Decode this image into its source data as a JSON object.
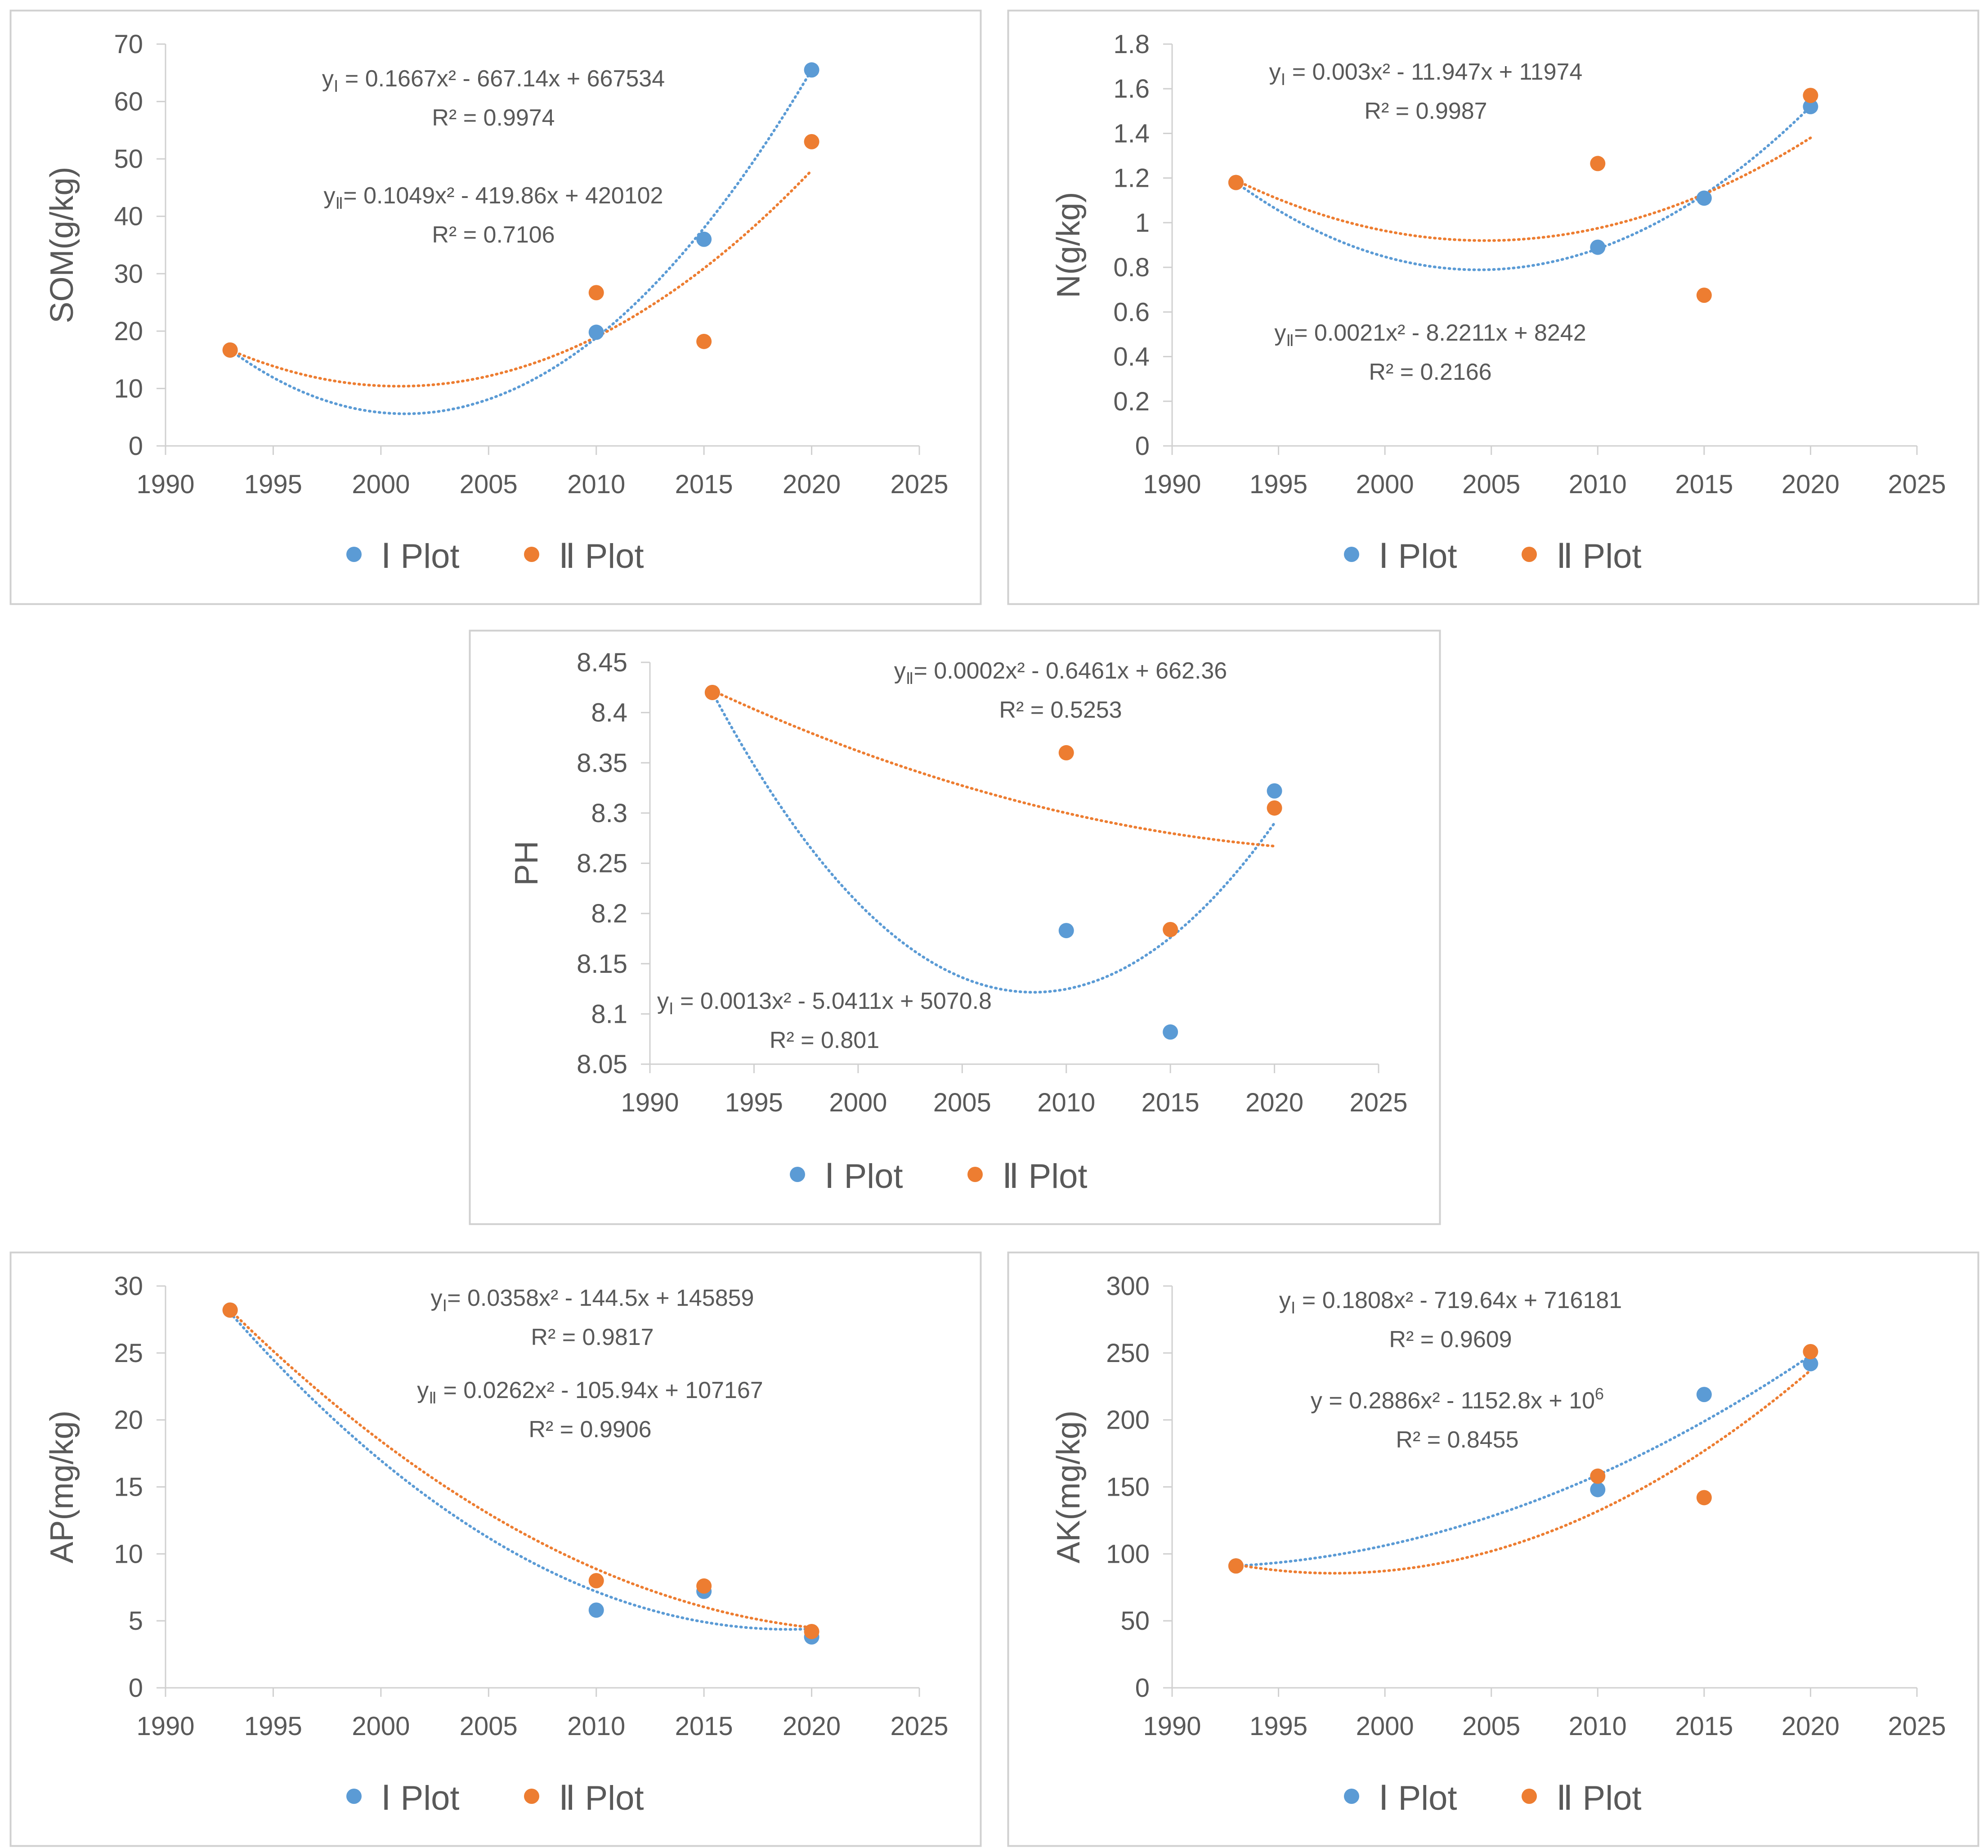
{
  "colors": {
    "series1": "#5B9BD5",
    "series2": "#ED7D31",
    "axis": "#D0D0D0",
    "text": "#595959",
    "border": "#D0D0D0"
  },
  "chart_data": [
    {
      "type": "scatter",
      "ylabel": "SOM(g/kg)",
      "xlabel": "",
      "xlim": [
        1990,
        2025
      ],
      "ylim": [
        0,
        70
      ],
      "x_ticks": [
        "1990",
        "1995",
        "2000",
        "2005",
        "2010",
        "2015",
        "2020",
        "2025"
      ],
      "y_ticks": [
        "0",
        "10",
        "20",
        "30",
        "40",
        "50",
        "60",
        "70"
      ],
      "legend": [
        "Ⅰ  Plot",
        "Ⅱ Plot"
      ],
      "legend_position": "bottom",
      "series": [
        {
          "name": "Ⅰ  Plot",
          "x": [
            1993,
            2010,
            2015,
            2020
          ],
          "y": [
            16.7,
            19.8,
            36.0,
            65.5
          ]
        },
        {
          "name": "Ⅱ Plot",
          "x": [
            1993,
            2010,
            2015,
            2020
          ],
          "y": [
            16.7,
            26.7,
            18.2,
            53.0
          ]
        }
      ],
      "trendlines": [
        {
          "type": "poly2",
          "through": [
            [
              1993,
              16.7
            ],
            [
              2001,
              5.6
            ],
            [
              2020,
              65.5
            ]
          ]
        },
        {
          "type": "poly2",
          "through": [
            [
              1993,
              16.7
            ],
            [
              2001,
              10.4
            ],
            [
              2020,
              48.0
            ]
          ]
        }
      ],
      "annotations": [
        {
          "lines": [
            {
              "text": "y",
              "sub": "Ⅰ",
              "rest": " = 0.1667x² - 667.14x + 667534"
            },
            {
              "text": "R² = 0.9974"
            }
          ]
        },
        {
          "lines": [
            {
              "text": "y",
              "sub": "Ⅱ",
              "rest": "= 0.1049x² - 419.86x + 420102"
            },
            {
              "text": "R² = 0.7106"
            }
          ]
        }
      ]
    },
    {
      "type": "scatter",
      "ylabel": "N(g/kg)",
      "xlabel": "",
      "xlim": [
        1990,
        2025
      ],
      "ylim": [
        0,
        1.8
      ],
      "x_ticks": [
        "1990",
        "1995",
        "2000",
        "2005",
        "2010",
        "2015",
        "2020",
        "2025"
      ],
      "y_ticks": [
        "0",
        "0.2",
        "0.4",
        "0.6",
        "0.8",
        "1",
        "1.2",
        "1.4",
        "1.6",
        "1.8"
      ],
      "legend": [
        "Ⅰ  Plot",
        "Ⅱ Plot"
      ],
      "legend_position": "bottom",
      "series": [
        {
          "name": "Ⅰ  Plot",
          "x": [
            1993,
            2010,
            2015,
            2020
          ],
          "y": [
            1.18,
            0.89,
            1.11,
            1.52
          ]
        },
        {
          "name": "Ⅱ Plot",
          "x": [
            1993,
            2010,
            2015,
            2020
          ],
          "y": [
            1.18,
            1.265,
            0.675,
            1.57
          ]
        }
      ],
      "trendlines": [
        {
          "type": "poly2",
          "through": [
            [
              1993,
              1.18
            ],
            [
              2005,
              0.79
            ],
            [
              2020,
              1.52
            ]
          ]
        },
        {
          "type": "poly2",
          "through": [
            [
              1993,
              1.19
            ],
            [
              2005,
              0.92
            ],
            [
              2020,
              1.38
            ]
          ]
        }
      ],
      "annotations": [
        {
          "lines": [
            {
              "text": "y",
              "sub": "Ⅰ",
              "rest": " = 0.003x² - 11.947x + 11974"
            },
            {
              "text": "R² = 0.9987"
            }
          ]
        },
        {
          "lines": [
            {
              "text": "y",
              "sub": "Ⅱ",
              "rest": "= 0.0021x² - 8.2211x + 8242"
            },
            {
              "text": "R² = 0.2166"
            }
          ]
        }
      ]
    },
    {
      "type": "scatter",
      "ylabel": "PH",
      "xlabel": "",
      "xlim": [
        1990,
        2025
      ],
      "ylim": [
        8.05,
        8.45
      ],
      "x_ticks": [
        "1990",
        "1995",
        "2000",
        "2005",
        "2010",
        "2015",
        "2020",
        "2025"
      ],
      "y_ticks": [
        "8.05",
        "8.1",
        "8.15",
        "8.2",
        "8.25",
        "8.3",
        "8.35",
        "8.4",
        "8.45"
      ],
      "legend": [
        "Ⅰ  Plot",
        "Ⅱ Plot"
      ],
      "legend_position": "bottom",
      "series": [
        {
          "name": "Ⅰ  Plot",
          "x": [
            1993,
            2010,
            2015,
            2020
          ],
          "y": [
            8.42,
            8.183,
            8.082,
            8.322
          ]
        },
        {
          "name": "Ⅱ Plot",
          "x": [
            1993,
            2010,
            2015,
            2020
          ],
          "y": [
            8.42,
            8.36,
            8.184,
            8.305
          ]
        }
      ],
      "trendlines": [
        {
          "type": "poly2",
          "through": [
            [
              1993,
              8.42
            ],
            [
              2009,
              8.122
            ],
            [
              2020,
              8.29
            ]
          ]
        },
        {
          "type": "poly2",
          "through": [
            [
              1993,
              8.422
            ],
            [
              2010,
              8.3
            ],
            [
              2020,
              8.267
            ]
          ]
        }
      ],
      "annotations": [
        {
          "lines": [
            {
              "text": "y",
              "sub": "Ⅱ",
              "rest": "= 0.0002x² - 0.6461x + 662.36"
            },
            {
              "text": "R² = 0.5253"
            }
          ]
        },
        {
          "lines": [
            {
              "text": "y",
              "sub": "Ⅰ",
              "rest": " = 0.0013x² - 5.0411x + 5070.8"
            },
            {
              "text": "R² = 0.801"
            }
          ]
        }
      ]
    },
    {
      "type": "scatter",
      "ylabel": "AP(mg/kg)",
      "xlabel": "",
      "xlim": [
        1990,
        2025
      ],
      "ylim": [
        0,
        30
      ],
      "x_ticks": [
        "1990",
        "1995",
        "2000",
        "2005",
        "2010",
        "2015",
        "2020",
        "2025"
      ],
      "y_ticks": [
        "0",
        "5",
        "10",
        "15",
        "20",
        "25",
        "30"
      ],
      "legend": [
        "Ⅰ  Plot",
        "Ⅱ Plot"
      ],
      "legend_position": "bottom",
      "series": [
        {
          "name": "Ⅰ  Plot",
          "x": [
            1993,
            2010,
            2015,
            2020
          ],
          "y": [
            28.2,
            5.8,
            7.2,
            3.8
          ]
        },
        {
          "name": "Ⅱ Plot",
          "x": [
            1993,
            2010,
            2015,
            2020
          ],
          "y": [
            28.2,
            8.0,
            7.6,
            4.2
          ]
        }
      ],
      "trendlines": [
        {
          "type": "poly2",
          "through": [
            [
              1993,
              28.0
            ],
            [
              2005,
              11.2
            ],
            [
              2020,
              4.4
            ]
          ]
        },
        {
          "type": "poly2",
          "through": [
            [
              1993,
              28.2
            ],
            [
              2005,
              13.0
            ],
            [
              2020,
              4.5
            ]
          ]
        }
      ],
      "annotations": [
        {
          "lines": [
            {
              "text": "y",
              "sub": "Ⅰ",
              "rest": "= 0.0358x² - 144.5x + 145859"
            },
            {
              "text": "R² = 0.9817"
            }
          ]
        },
        {
          "lines": [
            {
              "text": "y",
              "sub": "Ⅱ",
              "rest": " = 0.0262x² - 105.94x + 107167"
            },
            {
              "text": "R² = 0.9906"
            }
          ]
        }
      ]
    },
    {
      "type": "scatter",
      "ylabel": "AK(mg/kg)",
      "xlabel": "",
      "xlim": [
        1990,
        2025
      ],
      "ylim": [
        0,
        300
      ],
      "x_ticks": [
        "1990",
        "1995",
        "2000",
        "2005",
        "2010",
        "2015",
        "2020",
        "2025"
      ],
      "y_ticks": [
        "0",
        "50",
        "100",
        "150",
        "200",
        "250",
        "300"
      ],
      "legend": [
        "Ⅰ  Plot",
        "Ⅱ Plot"
      ],
      "legend_position": "bottom",
      "series": [
        {
          "name": "Ⅰ  Plot",
          "x": [
            1993,
            2010,
            2015,
            2020
          ],
          "y": [
            91,
            148,
            219,
            242
          ]
        },
        {
          "name": "Ⅱ Plot",
          "x": [
            1993,
            2010,
            2015,
            2020
          ],
          "y": [
            91,
            158,
            142,
            251
          ]
        }
      ],
      "trendlines": [
        {
          "type": "poly2",
          "through": [
            [
              1993,
              91
            ],
            [
              2005,
              128
            ],
            [
              2020,
              248
            ]
          ]
        },
        {
          "type": "poly2",
          "through": [
            [
              1993,
              92
            ],
            [
              2005,
              102
            ],
            [
              2020,
              237
            ]
          ]
        }
      ],
      "annotations": [
        {
          "lines": [
            {
              "text": "y",
              "sub": "Ⅰ",
              "rest": " = 0.1808x² - 719.64x + 716181"
            },
            {
              "text": "R² = 0.9609"
            }
          ]
        },
        {
          "lines": [
            {
              "text": "y = 0.2886x² - 1152.8x + 10",
              "sup": "6"
            },
            {
              "text": "R² = 0.8455"
            }
          ]
        }
      ]
    }
  ]
}
